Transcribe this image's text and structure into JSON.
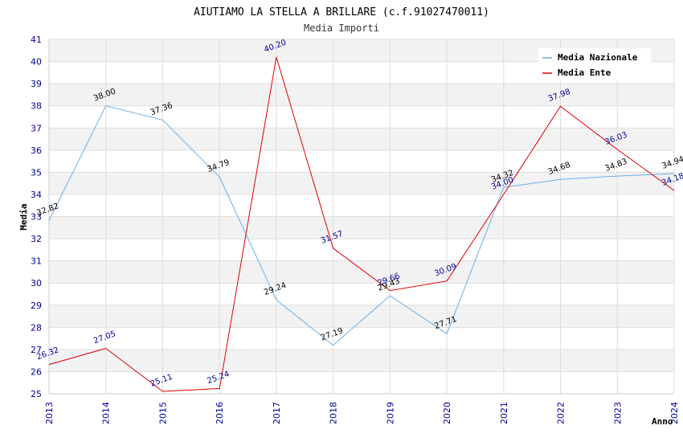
{
  "chart_data": {
    "type": "line",
    "title": "AIUTIAMO LA STELLA A BRILLARE (c.f.91027470011)",
    "subtitle": "Media Importi",
    "xlabel": "Anno",
    "ylabel": "Media",
    "ylim": [
      25,
      41
    ],
    "yticks": [
      "25",
      "26",
      "27",
      "28",
      "29",
      "30",
      "31",
      "32",
      "33",
      "34",
      "35",
      "36",
      "37",
      "38",
      "39",
      "40",
      "41"
    ],
    "categories": [
      "2013",
      "2014",
      "2015",
      "2016",
      "2017",
      "2018",
      "2019",
      "2020",
      "2021",
      "2022",
      "2023",
      "2024"
    ],
    "series": [
      {
        "name": "Media Nazionale",
        "color": "#6aaee8",
        "label_color": "#000000",
        "values": [
          32.82,
          38.0,
          37.36,
          34.79,
          29.24,
          27.19,
          29.43,
          27.71,
          34.32,
          34.68,
          34.83,
          34.94
        ],
        "labels": [
          "32.82",
          "38.00",
          "37.36",
          "34.79",
          "29.24",
          "27.19",
          "29.43",
          "27.71",
          "34.32",
          "34.68",
          "34.83",
          "34.94"
        ]
      },
      {
        "name": "Media Ente",
        "color": "#dd0000",
        "label_color": "#000099",
        "values": [
          26.32,
          27.05,
          25.11,
          25.24,
          40.2,
          31.57,
          29.66,
          30.09,
          34.0,
          37.98,
          36.03,
          34.18
        ],
        "labels": [
          "26.32",
          "27.05",
          "25.11",
          "25.24",
          "40.20",
          "31.57",
          "29.66",
          "30.09",
          "34.00",
          "37.98",
          "36.03",
          "34.18"
        ]
      }
    ],
    "grid": true,
    "legend_position": "top-right"
  }
}
